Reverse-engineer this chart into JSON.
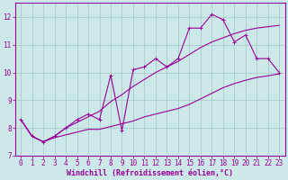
{
  "xlabel": "Windchill (Refroidissement éolien,°C)",
  "bg_color": "#cce8e8",
  "grid_color": "#aacccc",
  "line_color": "#990099",
  "x_data": [
    0,
    1,
    2,
    3,
    4,
    5,
    6,
    7,
    8,
    9,
    10,
    11,
    12,
    13,
    14,
    15,
    16,
    17,
    18,
    19,
    20,
    21,
    22,
    23
  ],
  "y_main": [
    8.3,
    7.7,
    7.5,
    7.7,
    8.0,
    8.3,
    8.5,
    8.3,
    9.9,
    7.9,
    10.1,
    10.2,
    10.5,
    10.2,
    10.5,
    11.6,
    11.6,
    12.1,
    11.9,
    11.1,
    11.35,
    10.5,
    10.5,
    10.0
  ],
  "y_low": [
    8.3,
    7.7,
    7.5,
    7.65,
    7.75,
    7.85,
    7.95,
    7.95,
    8.05,
    8.15,
    8.25,
    8.4,
    8.5,
    8.6,
    8.7,
    8.85,
    9.05,
    9.25,
    9.45,
    9.6,
    9.72,
    9.82,
    9.88,
    9.95
  ],
  "y_high": [
    8.3,
    7.7,
    7.5,
    7.7,
    8.0,
    8.2,
    8.4,
    8.6,
    8.95,
    9.2,
    9.5,
    9.75,
    10.0,
    10.2,
    10.4,
    10.65,
    10.9,
    11.1,
    11.25,
    11.4,
    11.52,
    11.6,
    11.65,
    11.7
  ],
  "ylim": [
    7.0,
    12.5
  ],
  "xlim": [
    -0.5,
    23.5
  ],
  "yticks": [
    7,
    8,
    9,
    10,
    11,
    12
  ],
  "xticks": [
    0,
    1,
    2,
    3,
    4,
    5,
    6,
    7,
    8,
    9,
    10,
    11,
    12,
    13,
    14,
    15,
    16,
    17,
    18,
    19,
    20,
    21,
    22,
    23
  ],
  "tick_fontsize": 5.5,
  "label_fontsize": 6.0
}
